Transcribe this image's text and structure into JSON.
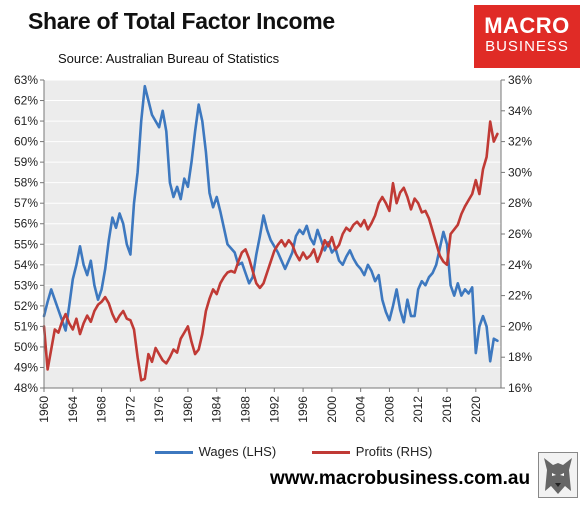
{
  "header": {
    "title": "Share of Total Factor Income",
    "source": "Source: Australian Bureau of Statistics"
  },
  "logo": {
    "line1": "MACRO",
    "line2": "BUSINESS",
    "brand_color": "#e02b26"
  },
  "footer": {
    "url": "www.macrobusiness.com.au"
  },
  "chart_data": {
    "type": "line",
    "title": "Share of Total Factor Income",
    "xlim": [
      1960,
      2023.5
    ],
    "x_ticks": [
      1960,
      1964,
      1968,
      1972,
      1976,
      1980,
      1984,
      1988,
      1992,
      1996,
      2000,
      2004,
      2008,
      2012,
      2016,
      2020
    ],
    "y_left": {
      "lim": [
        48,
        63
      ],
      "ticks": [
        48,
        49,
        50,
        51,
        52,
        53,
        54,
        55,
        56,
        57,
        58,
        59,
        60,
        61,
        62,
        63
      ],
      "suffix": "%"
    },
    "y_right": {
      "lim": [
        16,
        36
      ],
      "ticks": [
        16,
        18,
        20,
        22,
        24,
        26,
        28,
        30,
        32,
        34,
        36
      ],
      "suffix": "%"
    },
    "background": "#ececec",
    "grid": true,
    "legend": "bottom",
    "series": [
      {
        "name": "Wages (LHS)",
        "axis": "left",
        "color": "#3d78bf",
        "points": [
          [
            1960.0,
            51.5
          ],
          [
            1960.5,
            52.2
          ],
          [
            1961.0,
            52.8
          ],
          [
            1961.5,
            52.3
          ],
          [
            1962.0,
            51.8
          ],
          [
            1962.5,
            51.3
          ],
          [
            1963.0,
            50.8
          ],
          [
            1963.5,
            52.0
          ],
          [
            1964.0,
            53.3
          ],
          [
            1964.5,
            54.0
          ],
          [
            1965.0,
            54.9
          ],
          [
            1965.5,
            54.0
          ],
          [
            1966.0,
            53.5
          ],
          [
            1966.5,
            54.2
          ],
          [
            1967.0,
            53.0
          ],
          [
            1967.5,
            52.3
          ],
          [
            1968.0,
            52.8
          ],
          [
            1968.5,
            53.8
          ],
          [
            1969.0,
            55.2
          ],
          [
            1969.5,
            56.3
          ],
          [
            1970.0,
            55.8
          ],
          [
            1970.5,
            56.5
          ],
          [
            1971.0,
            56.0
          ],
          [
            1971.5,
            55.0
          ],
          [
            1972.0,
            54.5
          ],
          [
            1972.5,
            57.0
          ],
          [
            1973.0,
            58.5
          ],
          [
            1973.5,
            61.0
          ],
          [
            1974.0,
            62.7
          ],
          [
            1974.5,
            62.0
          ],
          [
            1975.0,
            61.3
          ],
          [
            1975.5,
            61.0
          ],
          [
            1976.0,
            60.7
          ],
          [
            1976.5,
            61.5
          ],
          [
            1977.0,
            60.5
          ],
          [
            1977.5,
            58.0
          ],
          [
            1978.0,
            57.3
          ],
          [
            1978.5,
            57.8
          ],
          [
            1979.0,
            57.2
          ],
          [
            1979.5,
            58.2
          ],
          [
            1980.0,
            57.8
          ],
          [
            1980.5,
            59.0
          ],
          [
            1981.0,
            60.5
          ],
          [
            1981.5,
            61.8
          ],
          [
            1982.0,
            61.0
          ],
          [
            1982.5,
            59.5
          ],
          [
            1983.0,
            57.5
          ],
          [
            1983.5,
            56.8
          ],
          [
            1984.0,
            57.3
          ],
          [
            1984.5,
            56.6
          ],
          [
            1985.0,
            55.8
          ],
          [
            1985.5,
            55.0
          ],
          [
            1986.0,
            54.8
          ],
          [
            1986.5,
            54.6
          ],
          [
            1987.0,
            54.0
          ],
          [
            1987.5,
            54.1
          ],
          [
            1988.0,
            53.6
          ],
          [
            1988.5,
            53.1
          ],
          [
            1989.0,
            53.4
          ],
          [
            1989.5,
            54.5
          ],
          [
            1990.0,
            55.4
          ],
          [
            1990.5,
            56.4
          ],
          [
            1991.0,
            55.7
          ],
          [
            1991.5,
            55.2
          ],
          [
            1992.0,
            54.9
          ],
          [
            1992.5,
            54.6
          ],
          [
            1993.0,
            54.2
          ],
          [
            1993.5,
            53.8
          ],
          [
            1994.0,
            54.2
          ],
          [
            1994.5,
            54.6
          ],
          [
            1995.0,
            55.4
          ],
          [
            1995.5,
            55.7
          ],
          [
            1996.0,
            55.5
          ],
          [
            1996.5,
            55.9
          ],
          [
            1997.0,
            55.3
          ],
          [
            1997.5,
            55.0
          ],
          [
            1998.0,
            55.7
          ],
          [
            1998.5,
            55.2
          ],
          [
            1999.0,
            54.7
          ],
          [
            1999.5,
            55.1
          ],
          [
            2000.0,
            54.6
          ],
          [
            2000.5,
            54.8
          ],
          [
            2001.0,
            54.2
          ],
          [
            2001.5,
            54.0
          ],
          [
            2002.0,
            54.4
          ],
          [
            2002.5,
            54.7
          ],
          [
            2003.0,
            54.3
          ],
          [
            2003.5,
            54.0
          ],
          [
            2004.0,
            53.8
          ],
          [
            2004.5,
            53.5
          ],
          [
            2005.0,
            54.0
          ],
          [
            2005.5,
            53.7
          ],
          [
            2006.0,
            53.2
          ],
          [
            2006.5,
            53.5
          ],
          [
            2007.0,
            52.3
          ],
          [
            2007.5,
            51.7
          ],
          [
            2008.0,
            51.3
          ],
          [
            2008.5,
            52.0
          ],
          [
            2009.0,
            52.8
          ],
          [
            2009.5,
            51.8
          ],
          [
            2010.0,
            51.2
          ],
          [
            2010.5,
            52.3
          ],
          [
            2011.0,
            51.5
          ],
          [
            2011.5,
            51.5
          ],
          [
            2012.0,
            52.8
          ],
          [
            2012.5,
            53.2
          ],
          [
            2013.0,
            53.0
          ],
          [
            2013.5,
            53.4
          ],
          [
            2014.0,
            53.6
          ],
          [
            2014.5,
            54.0
          ],
          [
            2015.0,
            54.8
          ],
          [
            2015.5,
            55.6
          ],
          [
            2016.0,
            55.0
          ],
          [
            2016.5,
            53.0
          ],
          [
            2017.0,
            52.5
          ],
          [
            2017.5,
            53.1
          ],
          [
            2018.0,
            52.5
          ],
          [
            2018.5,
            52.8
          ],
          [
            2019.0,
            52.6
          ],
          [
            2019.5,
            52.9
          ],
          [
            2020.0,
            49.7
          ],
          [
            2020.5,
            51.0
          ],
          [
            2021.0,
            51.5
          ],
          [
            2021.5,
            51.0
          ],
          [
            2022.0,
            49.3
          ],
          [
            2022.5,
            50.4
          ],
          [
            2023.0,
            50.3
          ]
        ]
      },
      {
        "name": "Profits (RHS)",
        "axis": "right",
        "color": "#c03a35",
        "points": [
          [
            1960.0,
            20.0
          ],
          [
            1960.5,
            17.2
          ],
          [
            1961.0,
            18.5
          ],
          [
            1961.5,
            19.8
          ],
          [
            1962.0,
            19.6
          ],
          [
            1962.5,
            20.3
          ],
          [
            1963.0,
            20.8
          ],
          [
            1963.5,
            20.2
          ],
          [
            1964.0,
            19.8
          ],
          [
            1964.5,
            20.5
          ],
          [
            1965.0,
            19.5
          ],
          [
            1965.5,
            20.2
          ],
          [
            1966.0,
            20.7
          ],
          [
            1966.5,
            20.3
          ],
          [
            1967.0,
            21.0
          ],
          [
            1967.5,
            21.4
          ],
          [
            1968.0,
            21.6
          ],
          [
            1968.5,
            21.9
          ],
          [
            1969.0,
            21.5
          ],
          [
            1969.5,
            20.8
          ],
          [
            1970.0,
            20.3
          ],
          [
            1970.5,
            20.7
          ],
          [
            1971.0,
            21.0
          ],
          [
            1971.5,
            20.5
          ],
          [
            1972.0,
            20.4
          ],
          [
            1972.5,
            19.8
          ],
          [
            1973.0,
            18.0
          ],
          [
            1973.5,
            16.5
          ],
          [
            1974.0,
            16.6
          ],
          [
            1974.5,
            18.2
          ],
          [
            1975.0,
            17.7
          ],
          [
            1975.5,
            18.6
          ],
          [
            1976.0,
            18.2
          ],
          [
            1976.5,
            17.8
          ],
          [
            1977.0,
            17.6
          ],
          [
            1977.5,
            18.0
          ],
          [
            1978.0,
            18.5
          ],
          [
            1978.5,
            18.3
          ],
          [
            1979.0,
            19.2
          ],
          [
            1979.5,
            19.6
          ],
          [
            1980.0,
            20.0
          ],
          [
            1980.5,
            19.0
          ],
          [
            1981.0,
            18.2
          ],
          [
            1981.5,
            18.5
          ],
          [
            1982.0,
            19.5
          ],
          [
            1982.5,
            21.0
          ],
          [
            1983.0,
            21.8
          ],
          [
            1983.5,
            22.4
          ],
          [
            1984.0,
            22.1
          ],
          [
            1984.5,
            22.8
          ],
          [
            1985.0,
            23.2
          ],
          [
            1985.5,
            23.5
          ],
          [
            1986.0,
            23.6
          ],
          [
            1986.5,
            23.5
          ],
          [
            1987.0,
            24.2
          ],
          [
            1987.5,
            24.8
          ],
          [
            1988.0,
            25.0
          ],
          [
            1988.5,
            24.4
          ],
          [
            1989.0,
            23.6
          ],
          [
            1989.5,
            22.8
          ],
          [
            1990.0,
            22.5
          ],
          [
            1990.5,
            22.8
          ],
          [
            1991.0,
            23.5
          ],
          [
            1991.5,
            24.2
          ],
          [
            1992.0,
            24.9
          ],
          [
            1992.5,
            25.3
          ],
          [
            1993.0,
            25.6
          ],
          [
            1993.5,
            25.2
          ],
          [
            1994.0,
            25.6
          ],
          [
            1994.5,
            25.3
          ],
          [
            1995.0,
            24.7
          ],
          [
            1995.5,
            24.3
          ],
          [
            1996.0,
            24.8
          ],
          [
            1996.5,
            24.4
          ],
          [
            1997.0,
            24.6
          ],
          [
            1997.5,
            25.0
          ],
          [
            1998.0,
            24.2
          ],
          [
            1998.5,
            24.8
          ],
          [
            1999.0,
            25.6
          ],
          [
            1999.5,
            25.2
          ],
          [
            2000.0,
            25.8
          ],
          [
            2000.5,
            25.0
          ],
          [
            2001.0,
            25.3
          ],
          [
            2001.5,
            26.0
          ],
          [
            2002.0,
            26.4
          ],
          [
            2002.5,
            26.2
          ],
          [
            2003.0,
            26.6
          ],
          [
            2003.5,
            26.8
          ],
          [
            2004.0,
            26.5
          ],
          [
            2004.5,
            26.9
          ],
          [
            2005.0,
            26.3
          ],
          [
            2005.5,
            26.7
          ],
          [
            2006.0,
            27.2
          ],
          [
            2006.5,
            28.0
          ],
          [
            2007.0,
            28.4
          ],
          [
            2007.5,
            28.0
          ],
          [
            2008.0,
            27.5
          ],
          [
            2008.5,
            29.3
          ],
          [
            2009.0,
            28.0
          ],
          [
            2009.5,
            28.7
          ],
          [
            2010.0,
            29.0
          ],
          [
            2010.5,
            28.4
          ],
          [
            2011.0,
            27.6
          ],
          [
            2011.5,
            28.3
          ],
          [
            2012.0,
            28.0
          ],
          [
            2012.5,
            27.4
          ],
          [
            2013.0,
            27.5
          ],
          [
            2013.5,
            27.0
          ],
          [
            2014.0,
            26.2
          ],
          [
            2014.5,
            25.4
          ],
          [
            2015.0,
            24.6
          ],
          [
            2015.5,
            24.2
          ],
          [
            2016.0,
            24.0
          ],
          [
            2016.5,
            26.0
          ],
          [
            2017.0,
            26.3
          ],
          [
            2017.5,
            26.6
          ],
          [
            2018.0,
            27.3
          ],
          [
            2018.5,
            27.8
          ],
          [
            2019.0,
            28.2
          ],
          [
            2019.5,
            28.6
          ],
          [
            2020.0,
            29.5
          ],
          [
            2020.5,
            28.6
          ],
          [
            2021.0,
            30.2
          ],
          [
            2021.5,
            31.0
          ],
          [
            2022.0,
            33.3
          ],
          [
            2022.5,
            32.0
          ],
          [
            2023.0,
            32.5
          ]
        ]
      }
    ]
  }
}
